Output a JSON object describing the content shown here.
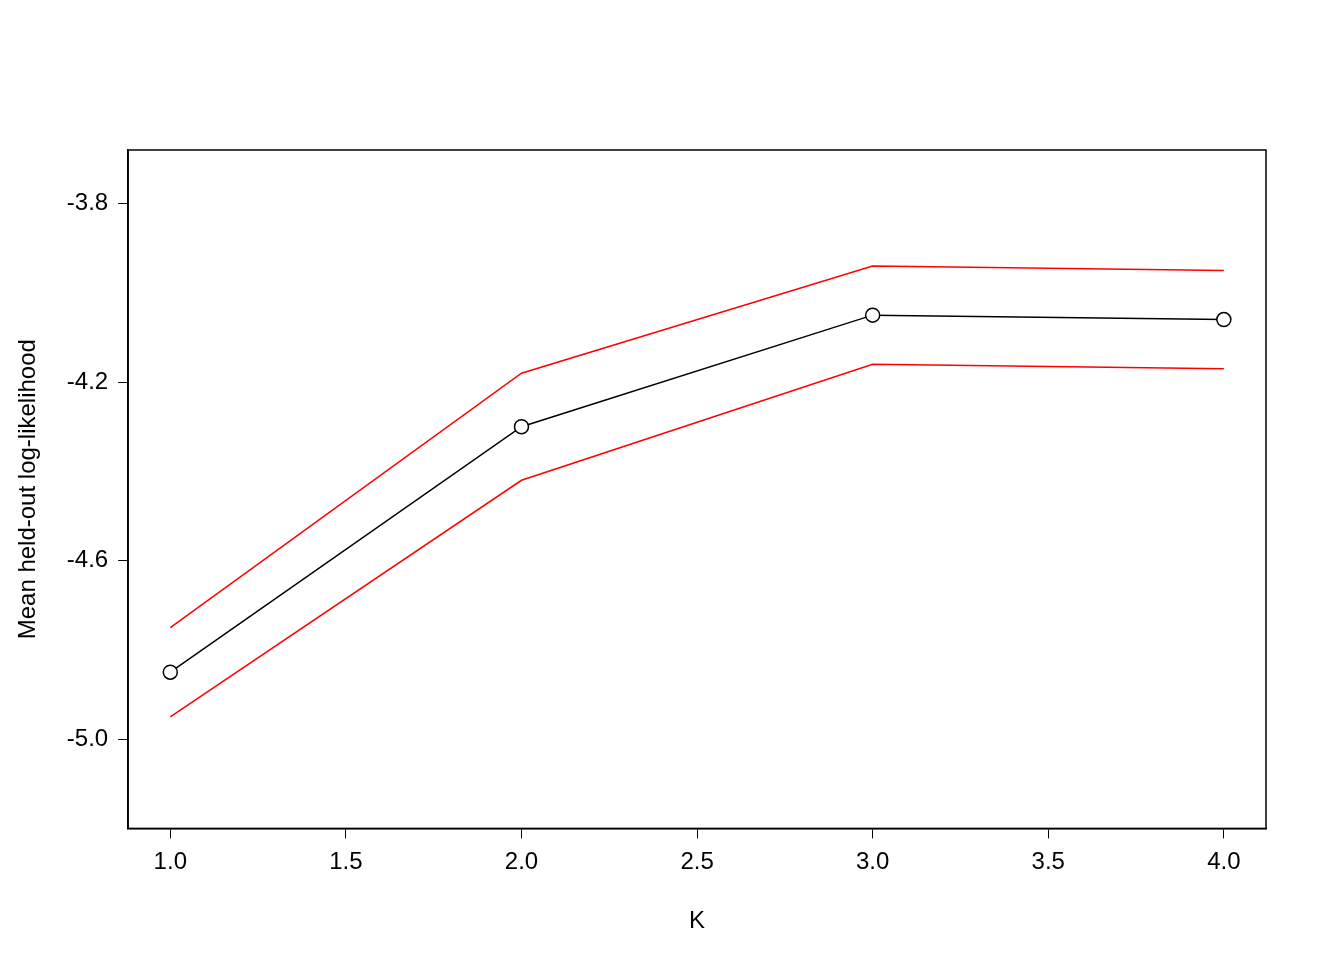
{
  "chart_data": {
    "type": "line",
    "x_label": "K",
    "y_label": "Mean held-out log-likelihood",
    "x": [
      1,
      2,
      3,
      4
    ],
    "series": [
      {
        "color": "#000000",
        "marker": "circle",
        "values": [
          -4.85,
          -4.3,
          -4.05,
          -4.06
        ]
      },
      {
        "color": "#ff0000",
        "marker": "none",
        "values": [
          -4.75,
          -4.18,
          -3.94,
          -3.95
        ]
      },
      {
        "color": "#ff0000",
        "marker": "none",
        "values": [
          -4.95,
          -4.42,
          -4.16,
          -4.17
        ]
      }
    ],
    "xlim": [
      0.88,
      4.12
    ],
    "xticks": [
      {
        "value": 1,
        "label": "1.0"
      },
      {
        "value": 1.5,
        "label": "1.5"
      },
      {
        "value": 2,
        "label": "2.0"
      },
      {
        "value": 2.5,
        "label": "2.5"
      },
      {
        "value": 3,
        "label": "3.0"
      },
      {
        "value": 3.5,
        "label": "3.5"
      },
      {
        "value": 4,
        "label": "4.0"
      }
    ],
    "ylim": [
      -5.2,
      -3.68
    ],
    "yticks": [
      {
        "value": -5,
        "label": "-5.0"
      },
      -4.6,
      -4.2,
      -3.8
    ],
    "grid": false
  }
}
